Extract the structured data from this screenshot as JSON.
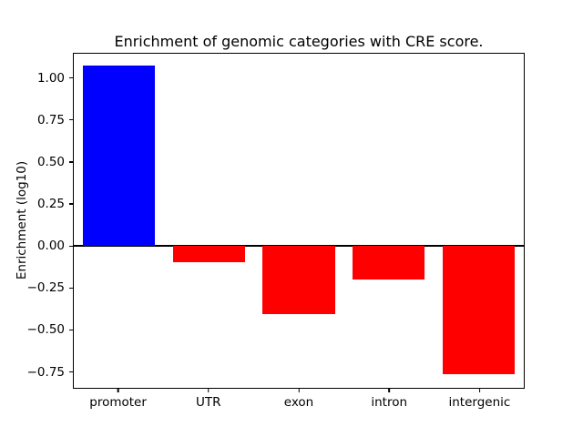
{
  "figure": {
    "title": "Enrichment of genomic categories with CRE score.",
    "ylabel": "Enrichment (log10)"
  },
  "chart_data": {
    "type": "bar",
    "title": "Enrichment of genomic categories with CRE score.",
    "xlabel": "",
    "ylabel": "Enrichment (log10)",
    "categories": [
      "promoter",
      "UTR",
      "exon",
      "intron",
      "intergenic"
    ],
    "values": [
      1.08,
      -0.1,
      -0.41,
      -0.2,
      -0.77
    ],
    "bar_colors": [
      "#0000ff",
      "#ff0000",
      "#ff0000",
      "#ff0000",
      "#ff0000"
    ],
    "positive_color": "#0000ff",
    "negative_color": "#ff0000",
    "ylim": [
      -0.85,
      1.15
    ],
    "yticks": [
      1.0,
      0.75,
      0.5,
      0.25,
      0.0,
      -0.25,
      -0.5,
      -0.75
    ],
    "ytick_labels": [
      "1.00",
      "0.75",
      "0.50",
      "0.25",
      "0.00",
      "−0.25",
      "−0.50",
      "−0.75"
    ],
    "bar_width_fraction": 0.8,
    "grid": false,
    "legend": null,
    "zero_line": true
  }
}
